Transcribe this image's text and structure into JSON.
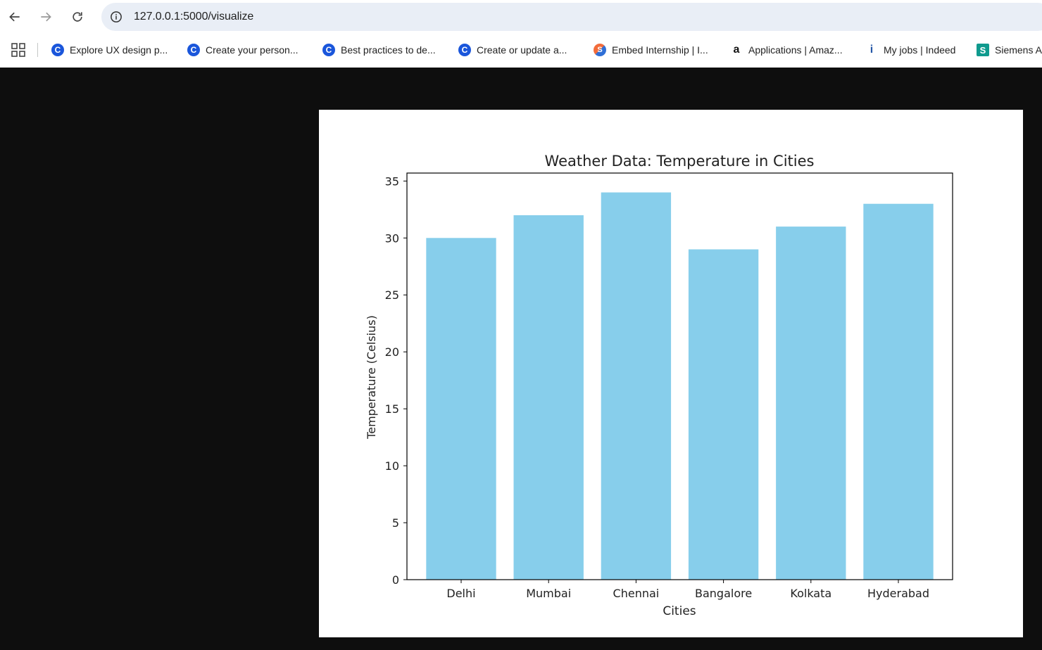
{
  "browser": {
    "url": "127.0.0.1:5000/visualize",
    "nav": {
      "back_icon": "arrow-left-icon",
      "forward_icon": "arrow-right-icon",
      "reload_icon": "reload-icon",
      "site_info_icon": "info-icon"
    },
    "bookmarks": [
      {
        "label": "Explore UX design p...",
        "icon": "c-logo-icon"
      },
      {
        "label": "Create your person...",
        "icon": "c-logo-icon"
      },
      {
        "label": "Best practices to de...",
        "icon": "c-logo-icon"
      },
      {
        "label": "Create or update a...",
        "icon": "c-logo-icon"
      },
      {
        "label": "Embed Internship | I...",
        "icon": "embed-logo-icon"
      },
      {
        "label": "Applications | Amaz...",
        "icon": "amazon-logo-icon"
      },
      {
        "label": "My jobs | Indeed",
        "icon": "indeed-logo-icon"
      },
      {
        "label": "Siemens A",
        "icon": "siemens-logo-icon"
      }
    ]
  },
  "colors": {
    "bar": "#87ceeb",
    "page_background": "#0e0e0e",
    "panel": "#ffffff"
  },
  "chart_data": {
    "type": "bar",
    "title": "Weather Data: Temperature in Cities",
    "xlabel": "Cities",
    "ylabel": "Temperature (Celsius)",
    "categories": [
      "Delhi",
      "Mumbai",
      "Chennai",
      "Bangalore",
      "Kolkata",
      "Hyderabad"
    ],
    "values": [
      30,
      32,
      34,
      29,
      31,
      33
    ],
    "ylim": [
      0,
      35.7
    ],
    "yticks": [
      0,
      5,
      10,
      15,
      20,
      25,
      30,
      35
    ],
    "grid": false,
    "legend": "none"
  }
}
